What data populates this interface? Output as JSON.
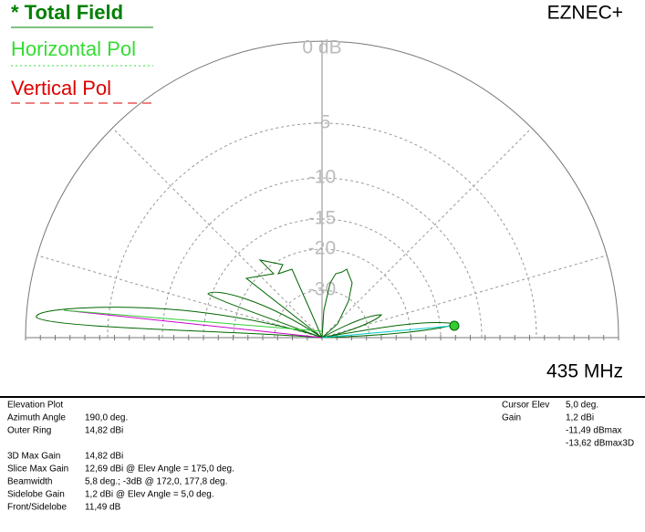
{
  "header": {
    "brand": "EZNEC+",
    "frequency": "435 MHz"
  },
  "legend": [
    {
      "label": "* Total Field"
    },
    {
      "label": "Horizontal Pol"
    },
    {
      "label": "Vertical Pol"
    }
  ],
  "rings": [
    "0 dB",
    "-5",
    "-10",
    "-15",
    "-20",
    "-30"
  ],
  "info_left": {
    "title": "Elevation Plot",
    "rows": [
      [
        "Azimuth Angle",
        "190,0 deg."
      ],
      [
        "Outer Ring",
        "14,82 dBi"
      ]
    ]
  },
  "info_left2": {
    "rows": [
      [
        "3D Max Gain",
        "14,82 dBi"
      ],
      [
        "Slice Max Gain",
        "12,69 dBi @ Elev Angle = 175,0 deg."
      ],
      [
        "Beamwidth",
        "5,8 deg.; -3dB @ 172,0, 177,8 deg."
      ],
      [
        "Sidelobe Gain",
        "1,2 dBi @ Elev Angle = 5,0 deg."
      ],
      [
        "Front/Sidelobe",
        "11,49 dB"
      ]
    ]
  },
  "info_right": {
    "rows": [
      [
        "Cursor Elev",
        "5,0 deg."
      ],
      [
        "Gain",
        "1,2 dBi"
      ],
      [
        "",
        "-11,49 dBmax"
      ],
      [
        "",
        "-13,62 dBmax3D"
      ]
    ]
  }
}
